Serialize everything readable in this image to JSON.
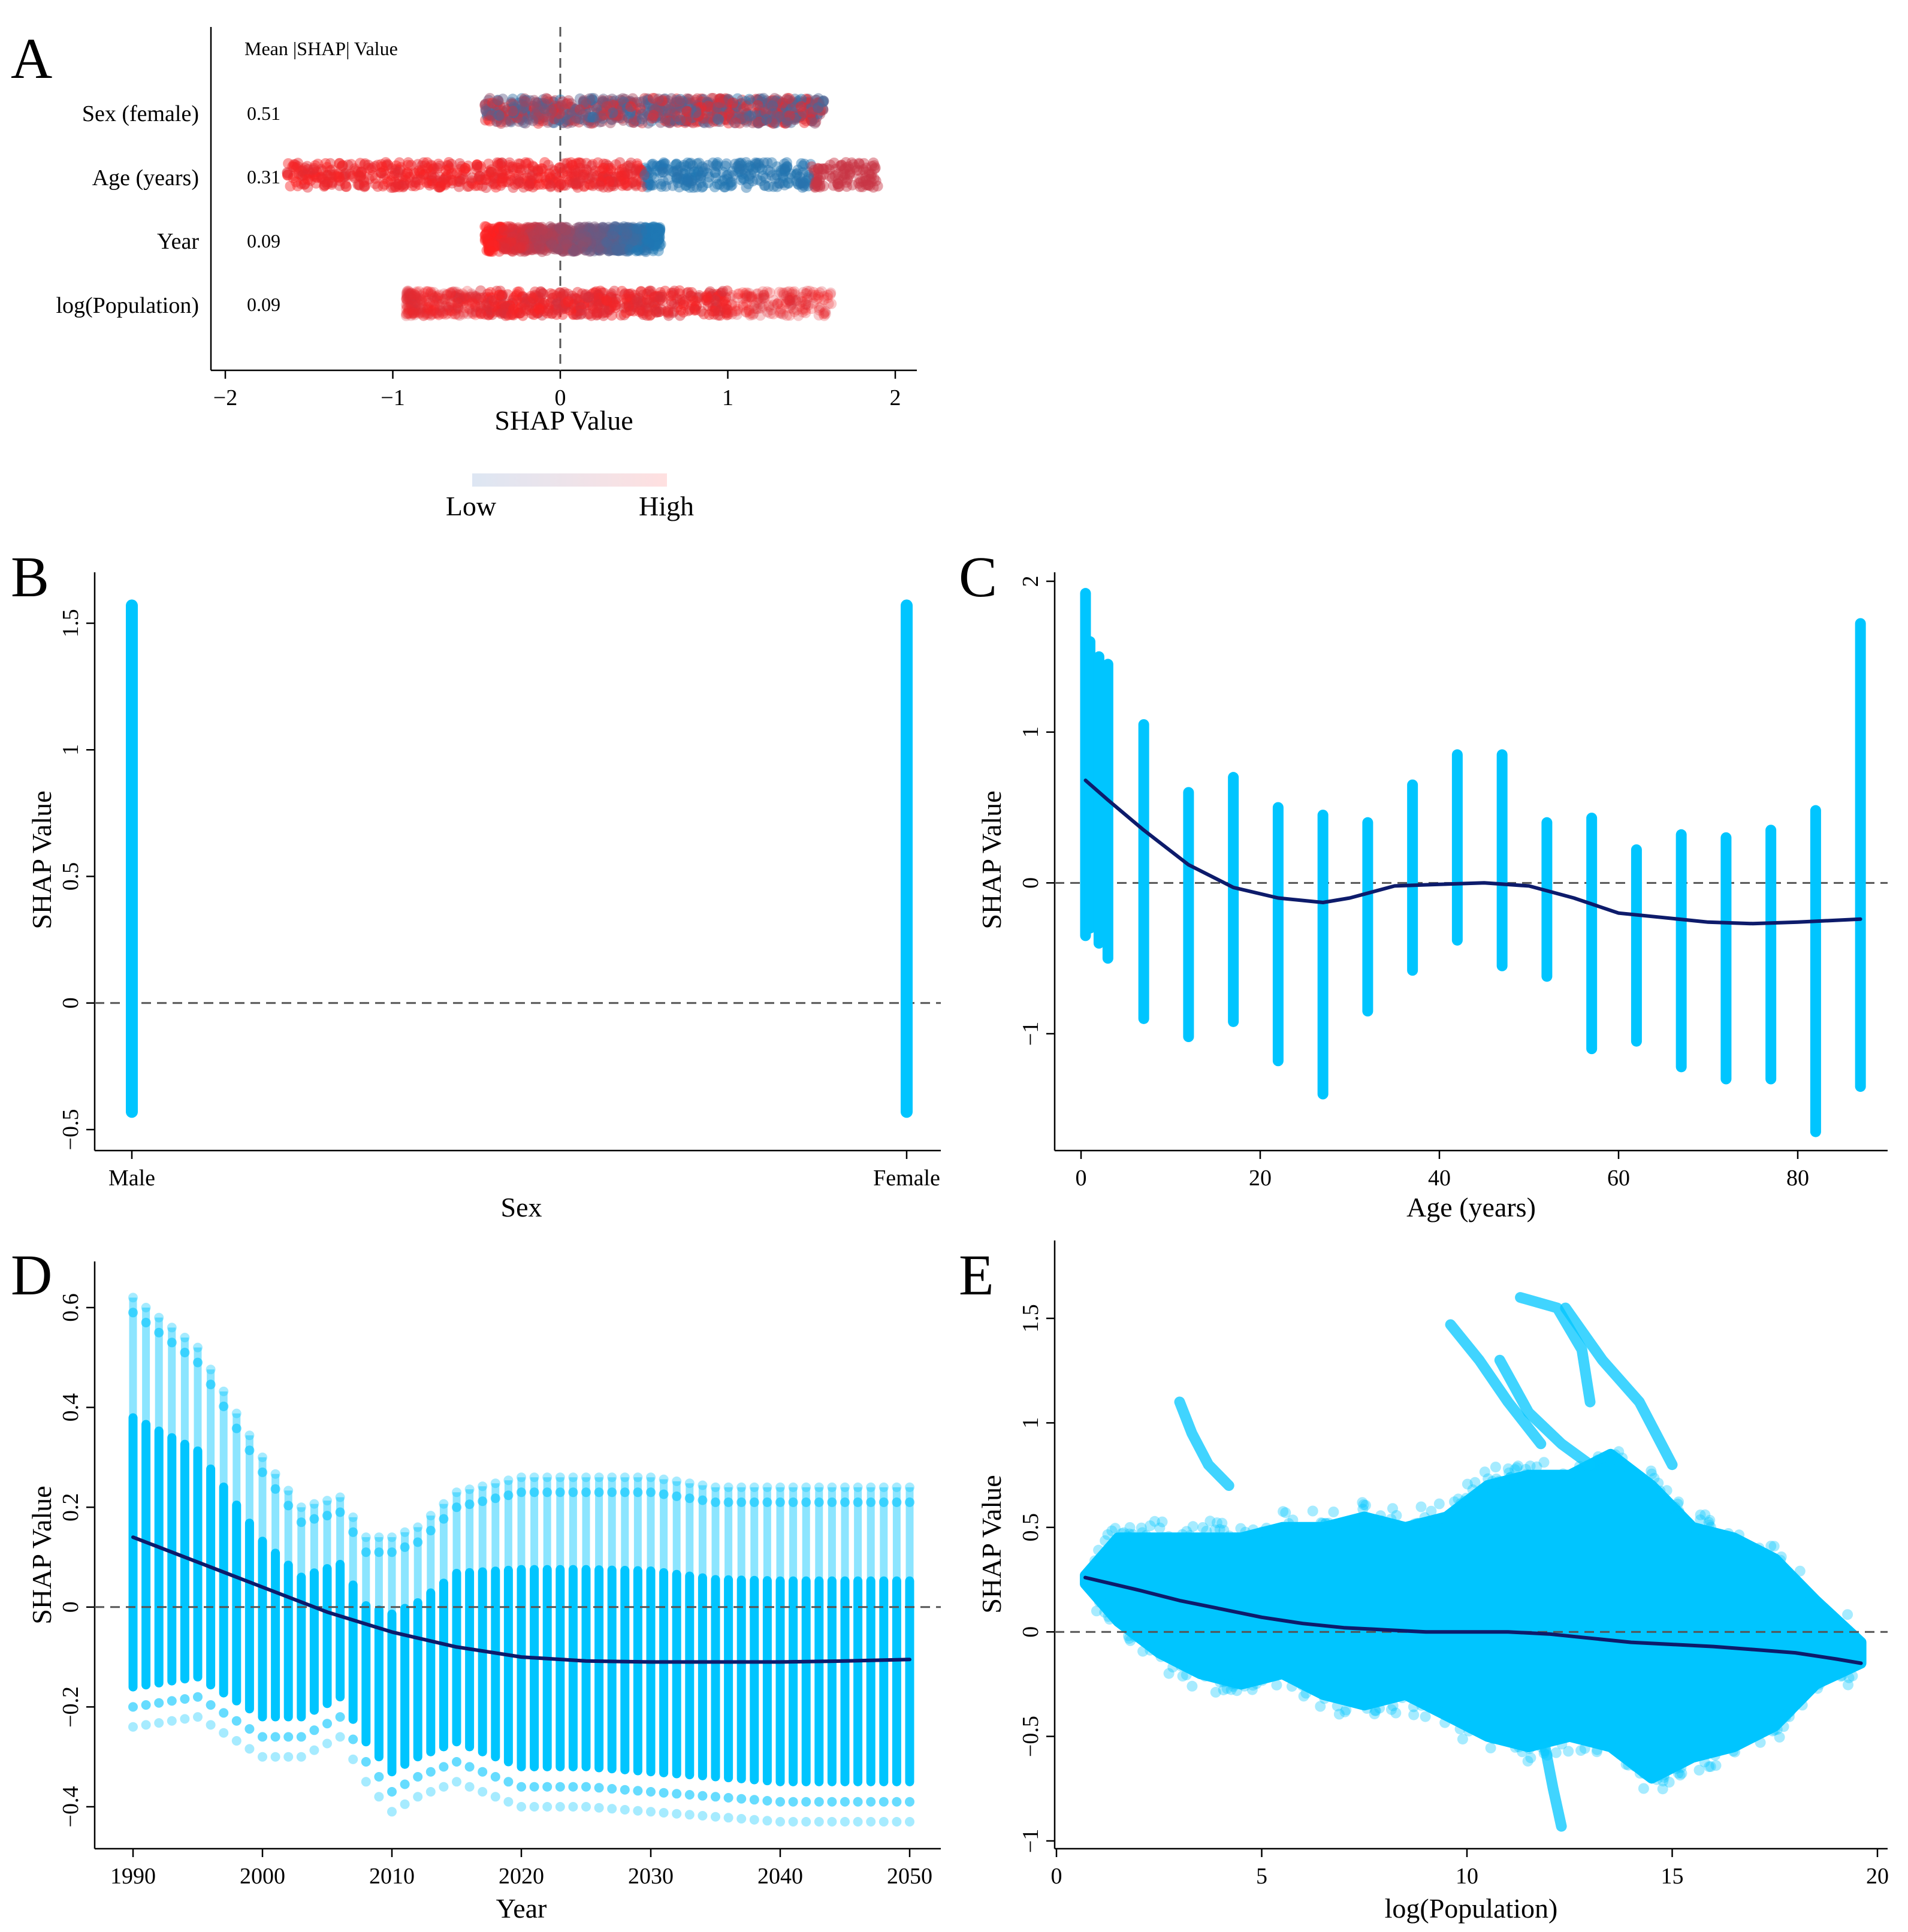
{
  "colors": {
    "low": "#1f77b4",
    "high": "#ff2020",
    "dependence": "#00c5ff",
    "fit": "#0d1b6b",
    "zero_line": "#555555"
  },
  "panels": {
    "A": {
      "letter": "A"
    },
    "B": {
      "letter": "B"
    },
    "C": {
      "letter": "C"
    },
    "D": {
      "letter": "D"
    },
    "E": {
      "letter": "E"
    }
  },
  "colorbar": {
    "low_label": "Low",
    "high_label": "High"
  },
  "chart_data": [
    {
      "id": "A",
      "type": "scatter",
      "title": "",
      "xlabel": "SHAP Value",
      "ylabel": "",
      "header": "Mean |SHAP| Value",
      "xlim": [
        -2.1,
        2.1
      ],
      "xticks": [
        -2,
        -1,
        0,
        1,
        2
      ],
      "xtick_labels": [
        "−2",
        "−1",
        "0",
        "1",
        "2"
      ],
      "features": [
        {
          "name": "Sex (female)",
          "mean_abs_shap": "0.51",
          "range": [
            -0.45,
            1.58
          ]
        },
        {
          "name": "Age (years)",
          "mean_abs_shap": "0.31",
          "range": [
            -1.63,
            1.9
          ]
        },
        {
          "name": "Year",
          "mean_abs_shap": "0.09",
          "range": [
            -0.45,
            0.6
          ]
        },
        {
          "name": "log(Population)",
          "mean_abs_shap": "0.09",
          "range": [
            -0.92,
            1.62
          ]
        }
      ]
    },
    {
      "id": "B",
      "type": "scatter",
      "xlabel": "Sex",
      "ylabel": "SHAP Value",
      "categories": [
        "Male",
        "Female"
      ],
      "ylim": [
        -0.5,
        1.6
      ],
      "yticks": [
        -0.5,
        0,
        0.5,
        1,
        1.5
      ],
      "ytick_labels": [
        "−0.5",
        "0",
        "0.5",
        "1",
        "1.5"
      ],
      "series": [
        {
          "category": "Male",
          "min": -0.43,
          "max": 1.57
        },
        {
          "category": "Female",
          "min": -0.43,
          "max": 1.57
        }
      ]
    },
    {
      "id": "C",
      "type": "scatter",
      "xlabel": "Age (years)",
      "ylabel": "SHAP Value",
      "xlim": [
        -3,
        90
      ],
      "ylim": [
        -1.75,
        2.05
      ],
      "xticks": [
        0,
        20,
        40,
        60,
        80
      ],
      "xtick_labels": [
        "0",
        "20",
        "40",
        "60",
        "80"
      ],
      "yticks": [
        -1,
        0,
        1,
        2
      ],
      "ytick_labels": [
        "−1",
        "0",
        "1",
        "2"
      ],
      "ranges": [
        {
          "x": 0.5,
          "min": -0.35,
          "max": 1.92
        },
        {
          "x": 1,
          "min": -0.3,
          "max": 1.6
        },
        {
          "x": 2,
          "min": -0.4,
          "max": 1.5
        },
        {
          "x": 3,
          "min": -0.5,
          "max": 1.45
        },
        {
          "x": 7,
          "min": -0.9,
          "max": 1.05
        },
        {
          "x": 12,
          "min": -1.02,
          "max": 0.6
        },
        {
          "x": 17,
          "min": -0.92,
          "max": 0.7
        },
        {
          "x": 22,
          "min": -1.18,
          "max": 0.5
        },
        {
          "x": 27,
          "min": -1.4,
          "max": 0.45
        },
        {
          "x": 32,
          "min": -0.85,
          "max": 0.4
        },
        {
          "x": 37,
          "min": -0.58,
          "max": 0.65
        },
        {
          "x": 42,
          "min": -0.38,
          "max": 0.85
        },
        {
          "x": 47,
          "min": -0.55,
          "max": 0.85
        },
        {
          "x": 52,
          "min": -0.62,
          "max": 0.4
        },
        {
          "x": 57,
          "min": -1.1,
          "max": 0.43
        },
        {
          "x": 62,
          "min": -1.05,
          "max": 0.22
        },
        {
          "x": 67,
          "min": -1.22,
          "max": 0.32
        },
        {
          "x": 72,
          "min": -1.3,
          "max": 0.3
        },
        {
          "x": 77,
          "min": -1.3,
          "max": 0.35
        },
        {
          "x": 82,
          "min": -1.65,
          "max": 0.48
        },
        {
          "x": 87,
          "min": -1.35,
          "max": 1.72
        }
      ],
      "fit": {
        "x": [
          0.5,
          3,
          7,
          12,
          17,
          22,
          27,
          30,
          35,
          40,
          45,
          50,
          55,
          60,
          65,
          70,
          75,
          80,
          87
        ],
        "y": [
          0.68,
          0.55,
          0.35,
          0.12,
          -0.03,
          -0.1,
          -0.13,
          -0.1,
          -0.02,
          -0.01,
          0.0,
          -0.02,
          -0.1,
          -0.2,
          -0.23,
          -0.26,
          -0.27,
          -0.26,
          -0.24
        ]
      }
    },
    {
      "id": "D",
      "type": "scatter",
      "xlabel": "Year",
      "ylabel": "SHAP Value",
      "xlim": [
        1988,
        2052
      ],
      "ylim": [
        -0.45,
        0.65
      ],
      "xticks": [
        1990,
        2000,
        2010,
        2020,
        2030,
        2040,
        2050
      ],
      "xtick_labels": [
        "1990",
        "2000",
        "2010",
        "2020",
        "2030",
        "2040",
        "2050"
      ],
      "yticks": [
        -0.4,
        -0.2,
        0,
        0.2,
        0.4,
        0.6
      ],
      "ytick_labels": [
        "−0.4",
        "−0.2",
        "0",
        "0.2",
        "0.4",
        "0.6"
      ],
      "range_breakpoints": {
        "x": [
          1990,
          1995,
          2000,
          2003,
          2006,
          2008,
          2010,
          2012,
          2015,
          2020,
          2025,
          2030,
          2035,
          2040,
          2045,
          2050
        ],
        "min": [
          -0.24,
          -0.22,
          -0.3,
          -0.3,
          -0.26,
          -0.35,
          -0.41,
          -0.38,
          -0.35,
          -0.4,
          -0.4,
          -0.41,
          -0.42,
          -0.43,
          -0.43,
          -0.43
        ],
        "max": [
          0.62,
          0.52,
          0.3,
          0.2,
          0.22,
          0.14,
          0.14,
          0.16,
          0.23,
          0.26,
          0.26,
          0.26,
          0.24,
          0.24,
          0.24,
          0.24
        ]
      },
      "fit": {
        "x": [
          1990,
          1995,
          2000,
          2005,
          2010,
          2015,
          2020,
          2025,
          2030,
          2035,
          2040,
          2045,
          2050
        ],
        "y": [
          0.14,
          0.09,
          0.04,
          -0.01,
          -0.05,
          -0.08,
          -0.1,
          -0.108,
          -0.11,
          -0.11,
          -0.11,
          -0.108,
          -0.105
        ]
      }
    },
    {
      "id": "E",
      "type": "scatter",
      "xlabel": "log(Population)",
      "ylabel": "SHAP Value",
      "xlim": [
        0,
        20.3
      ],
      "ylim": [
        -1.0,
        1.7
      ],
      "xticks": [
        0,
        5,
        10,
        15,
        20
      ],
      "xtick_labels": [
        "0",
        "5",
        "10",
        "15",
        "20"
      ],
      "yticks": [
        -1,
        -0.5,
        0,
        0.5,
        1,
        1.5
      ],
      "ytick_labels": [
        "−1",
        "−0.5",
        "0",
        "0.5",
        "1",
        "1.5"
      ],
      "envelope": {
        "x": [
          0.7,
          1.5,
          2.5,
          3.5,
          4.5,
          5.5,
          6.5,
          7.5,
          8.5,
          9.5,
          10.5,
          11.5,
          12.5,
          13.5,
          14.5,
          15.5,
          16.5,
          17.5,
          18.5,
          19.6
        ],
        "min": [
          0.23,
          0.05,
          -0.1,
          -0.2,
          -0.25,
          -0.2,
          -0.3,
          -0.35,
          -0.3,
          -0.4,
          -0.5,
          -0.55,
          -0.5,
          -0.55,
          -0.7,
          -0.6,
          -0.55,
          -0.45,
          -0.25,
          -0.15
        ],
        "max": [
          0.27,
          0.45,
          0.45,
          0.45,
          0.45,
          0.5,
          0.5,
          0.55,
          0.5,
          0.55,
          0.7,
          0.75,
          0.75,
          0.85,
          0.7,
          0.5,
          0.45,
          0.35,
          0.15,
          -0.05
        ]
      },
      "trails": [
        {
          "x": [
            3.0,
            3.3,
            3.7,
            4.2
          ],
          "y": [
            1.1,
            0.95,
            0.8,
            0.7
          ]
        },
        {
          "x": [
            9.6,
            10.3,
            11.0,
            11.8
          ],
          "y": [
            1.47,
            1.3,
            1.1,
            0.9
          ]
        },
        {
          "x": [
            11.3,
            12.2,
            12.8,
            13.0
          ],
          "y": [
            1.6,
            1.55,
            1.35,
            1.1
          ]
        },
        {
          "x": [
            12.4,
            13.3,
            14.2,
            15.0
          ],
          "y": [
            1.55,
            1.3,
            1.1,
            0.8
          ]
        },
        {
          "x": [
            10.8,
            11.5,
            12.3,
            13.0
          ],
          "y": [
            1.3,
            1.05,
            0.9,
            0.8
          ]
        },
        {
          "x": [
            11.9,
            12.1,
            12.3
          ],
          "y": [
            -0.55,
            -0.75,
            -0.93
          ]
        }
      ],
      "fit": {
        "x": [
          0.7,
          2,
          3,
          4,
          5,
          6,
          7,
          8,
          9,
          10,
          11,
          12,
          13,
          14,
          15,
          16,
          17,
          18,
          19,
          19.6
        ],
        "y": [
          0.26,
          0.2,
          0.15,
          0.11,
          0.07,
          0.04,
          0.02,
          0.01,
          0.0,
          0.0,
          0.0,
          -0.01,
          -0.03,
          -0.05,
          -0.06,
          -0.07,
          -0.085,
          -0.1,
          -0.13,
          -0.15
        ]
      }
    }
  ]
}
